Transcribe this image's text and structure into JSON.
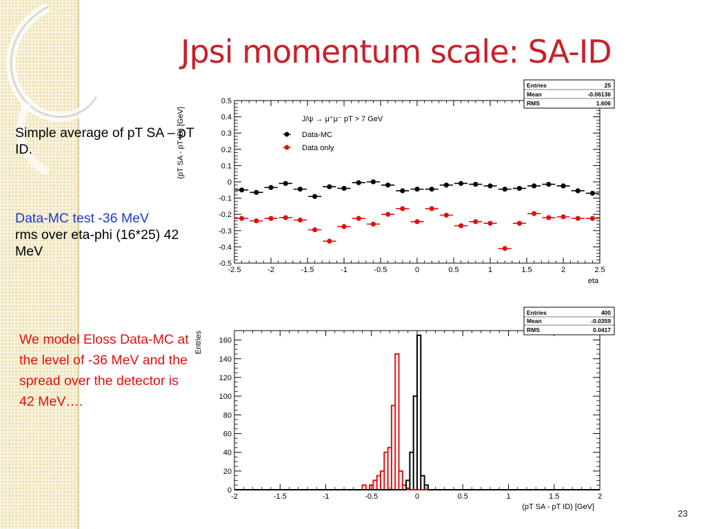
{
  "slide": {
    "title": "Jpsi momentum scale: SA-ID",
    "text1": "Simple average of  pT SA – pT ID.",
    "text2_blue": "Data-MC test -36 MeV",
    "text2_black": "rms over eta-phi (16*25) 42 MeV",
    "text3": "We model Eloss Data-MC at the level of -36 MeV and the spread over the detector is 42 MeV….",
    "page_number": "23"
  },
  "colors": {
    "title": "#c8202a",
    "blue_text": "#1a3acb",
    "red": "#e01010",
    "data_mc": "#000000",
    "data_only": "#e01010"
  },
  "chart_data": [
    {
      "type": "scatter",
      "xlabel": "eta",
      "ylabel": "(pT SA - pT ID) [GeV]",
      "xlim": [
        -2.5,
        2.5
      ],
      "ylim": [
        -0.5,
        0.5
      ],
      "x_ticks": [
        "-2.5",
        "-2",
        "-1.5",
        "-1",
        "-0.5",
        "0",
        "0.5",
        "1",
        "1.5",
        "2",
        "2.5"
      ],
      "y_ticks": [
        "-0.5",
        "-0.4",
        "-0.3",
        "-0.2",
        "-0.1",
        "0",
        "0.1",
        "0.2",
        "0.3",
        "0.4",
        "0.5"
      ],
      "legend_title": "J/ψ → μ⁺μ⁻  pT > 7 GeV",
      "stats": [
        {
          "label": "Entries",
          "value": "25"
        },
        {
          "label": "Mean",
          "value": "-0.06136"
        },
        {
          "label": "RMS",
          "value": "1.606"
        }
      ],
      "x": [
        -2.4,
        -2.2,
        -2.0,
        -1.8,
        -1.6,
        -1.4,
        -1.2,
        -1.0,
        -0.8,
        -0.6,
        -0.4,
        -0.2,
        0.0,
        0.2,
        0.4,
        0.6,
        0.8,
        1.0,
        1.2,
        1.4,
        1.6,
        1.8,
        2.0,
        2.2,
        2.4
      ],
      "series": [
        {
          "name": "Data-MC",
          "values": [
            -0.05,
            -0.065,
            -0.035,
            -0.01,
            -0.045,
            -0.09,
            -0.03,
            -0.04,
            -0.005,
            0.0,
            -0.02,
            -0.055,
            -0.045,
            -0.045,
            -0.02,
            -0.01,
            -0.015,
            -0.025,
            -0.045,
            -0.04,
            -0.025,
            -0.015,
            -0.025,
            -0.055,
            -0.07
          ]
        },
        {
          "name": "Data only",
          "values": [
            -0.225,
            -0.24,
            -0.225,
            -0.22,
            -0.235,
            -0.295,
            -0.365,
            -0.275,
            -0.225,
            -0.26,
            -0.2,
            -0.165,
            -0.245,
            -0.165,
            -0.205,
            -0.27,
            -0.245,
            -0.255,
            -0.41,
            -0.255,
            -0.195,
            -0.22,
            -0.215,
            -0.225,
            -0.225
          ]
        }
      ]
    },
    {
      "type": "bar",
      "xlabel": "(pT SA - pT ID) [GeV]",
      "ylabel": "Entries",
      "xlim": [
        -2,
        2
      ],
      "ylim": [
        0,
        170
      ],
      "x_ticks": [
        "-2",
        "-1.5",
        "-1",
        "-0.5",
        "0",
        "0.5",
        "1",
        "1.5",
        "2"
      ],
      "y_ticks": [
        "0",
        "20",
        "40",
        "60",
        "80",
        "100",
        "120",
        "140",
        "160"
      ],
      "stats": [
        {
          "label": "Entries",
          "value": "400"
        },
        {
          "label": "Mean",
          "value": "-0.0359"
        },
        {
          "label": "RMS",
          "value": "0.0417"
        }
      ],
      "bin_width": 0.04,
      "series": [
        {
          "color": "#000000",
          "bin_starts": [
            -0.12,
            -0.08,
            -0.04,
            0.0,
            0.04,
            0.08
          ],
          "values": [
            10,
            40,
            100,
            165,
            15,
            5
          ]
        },
        {
          "color": "#e01010",
          "bin_starts": [
            -0.6,
            -0.52,
            -0.48,
            -0.44,
            -0.4,
            -0.36,
            -0.32,
            -0.28,
            -0.24,
            -0.2,
            -0.16,
            -0.12
          ],
          "values": [
            5,
            5,
            10,
            15,
            20,
            40,
            45,
            90,
            145,
            20,
            5,
            1
          ]
        }
      ]
    }
  ]
}
